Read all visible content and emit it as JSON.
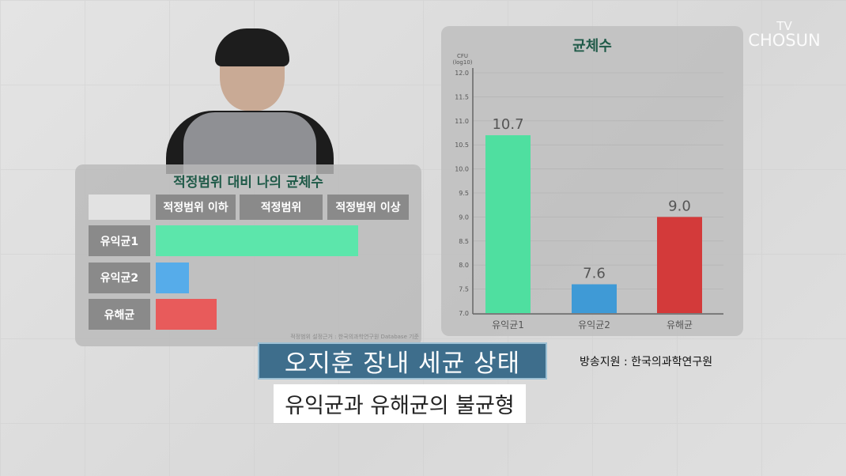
{
  "logo": {
    "line1": "TV",
    "line2": "CHOSUN"
  },
  "left_chart": {
    "title": "적정범위 대비 나의 균체수",
    "columns": [
      "적정범위 이하",
      "적정범위",
      "적정범위 이상"
    ],
    "rows": [
      {
        "label": "유익균1",
        "level": 0.8,
        "color": "#5ce6ab"
      },
      {
        "label": "유익균2",
        "level": 0.13,
        "color": "#56acea"
      },
      {
        "label": "유해균",
        "level": 0.24,
        "color": "#e85b5b"
      }
    ],
    "footnote": "적정범위 설정근거 : 한국의과학연구원 Database 기준"
  },
  "chart_data": {
    "type": "bar",
    "title": "균체수",
    "ylabel": "CFU (log10)",
    "ylabel_line1": "CFU",
    "ylabel_line2": "(log10)",
    "categories": [
      "유익균1",
      "유익균2",
      "유해균"
    ],
    "values": [
      10.7,
      7.6,
      9.0
    ],
    "labels": [
      "10.7",
      "7.6",
      "9.0"
    ],
    "colors": [
      "#4fdfa0",
      "#3f9ad6",
      "#d33a3a"
    ],
    "ylim": [
      7.0,
      12.0
    ],
    "yticks": [
      "7.0",
      "7.5",
      "8.0",
      "8.5",
      "9.0",
      "9.5",
      "10.0",
      "10.5",
      "11.0",
      "11.5",
      "12.0"
    ],
    "grid": true
  },
  "caption": {
    "title": "오지훈 장내 세균 상태",
    "subtitle": "유익균과 유해균의 불균형",
    "credit": "방송지원 : 한국의과학연구원"
  }
}
